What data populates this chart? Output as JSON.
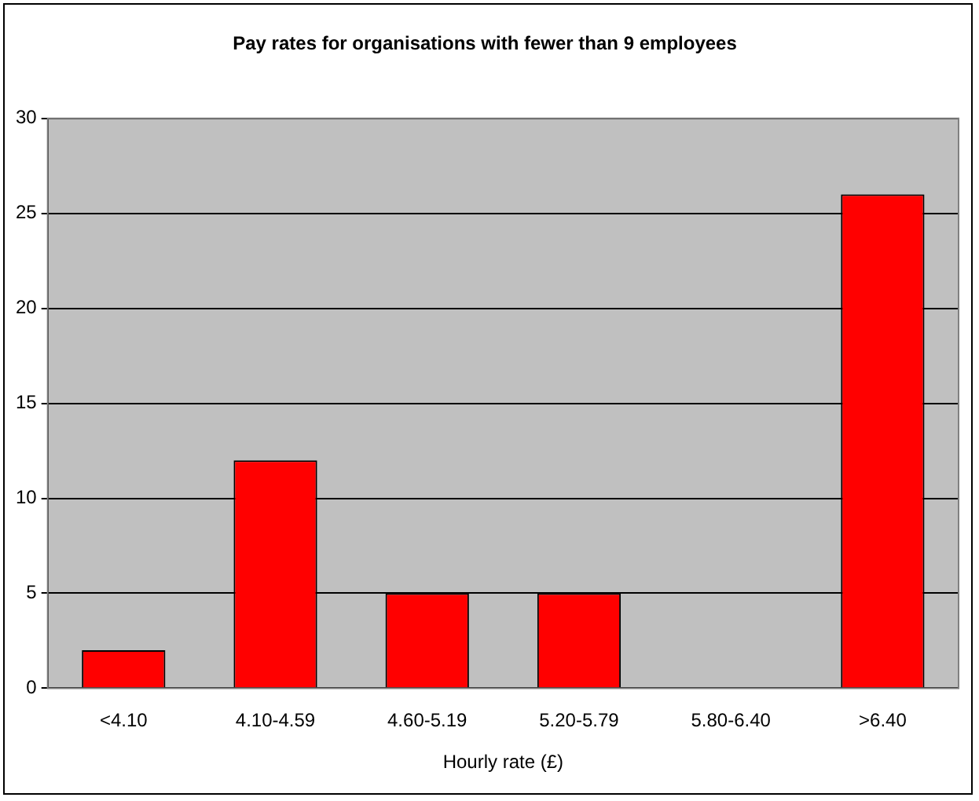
{
  "chart_data": {
    "type": "bar",
    "title": "Pay rates for organisations with fewer than 9 employees",
    "xlabel": "Hourly rate (£)",
    "categories": [
      "<4.10",
      "4.10-4.59",
      "4.60-5.19",
      "5.20-5.79",
      "5.80-6.40",
      ">6.40"
    ],
    "values": [
      2,
      12,
      5,
      5,
      0,
      26
    ],
    "color": "#ff0000",
    "ylim": [
      0,
      30
    ],
    "yticks": [
      0,
      5,
      10,
      15,
      20,
      25,
      30
    ],
    "grid": "y",
    "legend": false
  }
}
